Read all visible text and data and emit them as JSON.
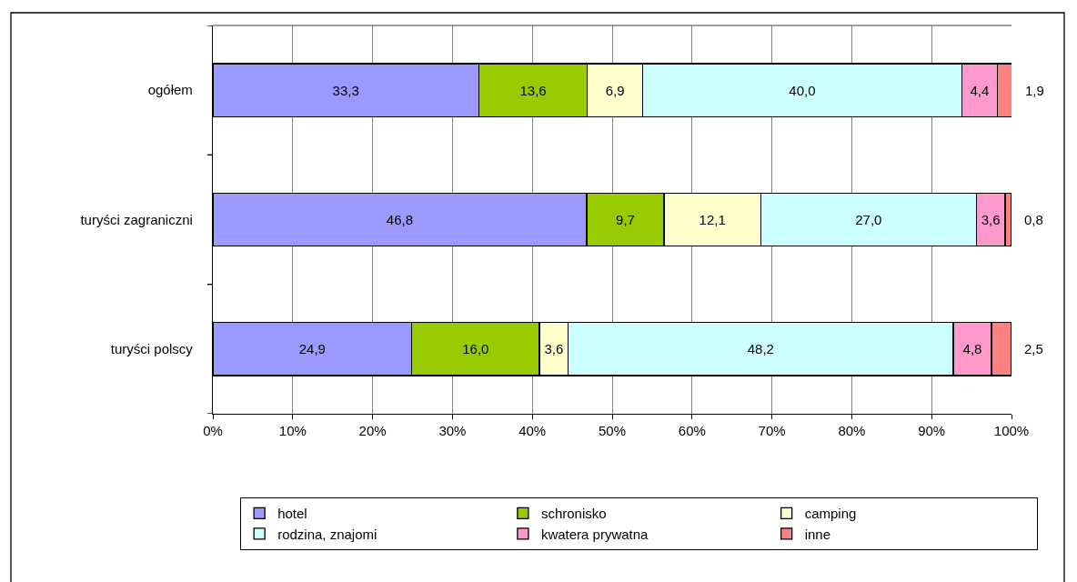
{
  "chart_data": {
    "type": "bar",
    "orientation": "horizontal",
    "stacked": true,
    "categories": [
      "ogółem",
      "turyści zagraniczni",
      "turyści polscy"
    ],
    "series": [
      {
        "name": "hotel",
        "color": "#9999ff",
        "values": [
          33.3,
          46.8,
          24.9
        ],
        "value_labels": [
          "33,3",
          "46,8",
          "24,9"
        ]
      },
      {
        "name": "schronisko",
        "color": "#99cc00",
        "values": [
          13.6,
          9.7,
          16.0
        ],
        "value_labels": [
          "13,6",
          "9,7",
          "16,0"
        ]
      },
      {
        "name": "camping",
        "color": "#ffffcc",
        "values": [
          6.9,
          12.1,
          3.6
        ],
        "value_labels": [
          "6,9",
          "12,1",
          "3,6"
        ]
      },
      {
        "name": "rodzina, znajomi",
        "color": "#ccffff",
        "values": [
          40.0,
          27.0,
          48.2
        ],
        "value_labels": [
          "40,0",
          "27,0",
          "48,2"
        ]
      },
      {
        "name": "kwatera prywatna",
        "color": "#ff99cc",
        "values": [
          4.4,
          3.6,
          4.8
        ],
        "value_labels": [
          "4,4",
          "3,6",
          "4,8"
        ]
      },
      {
        "name": "inne",
        "color": "#ff8080",
        "values": [
          1.9,
          0.8,
          2.5
        ],
        "value_labels": [
          "1,9",
          "0,8",
          "2,5"
        ]
      }
    ],
    "xlim": [
      0,
      100
    ],
    "xticks": [
      {
        "value": 0,
        "label": "0%"
      },
      {
        "value": 10,
        "label": "10%"
      },
      {
        "value": 20,
        "label": "20%"
      },
      {
        "value": 30,
        "label": "30%"
      },
      {
        "value": 40,
        "label": "40%"
      },
      {
        "value": 50,
        "label": "50%"
      },
      {
        "value": 60,
        "label": "60%"
      },
      {
        "value": 70,
        "label": "70%"
      },
      {
        "value": 80,
        "label": "80%"
      },
      {
        "value": 90,
        "label": "90%"
      },
      {
        "value": 100,
        "label": "100%"
      }
    ],
    "grid": "x",
    "legend": "bottom"
  }
}
